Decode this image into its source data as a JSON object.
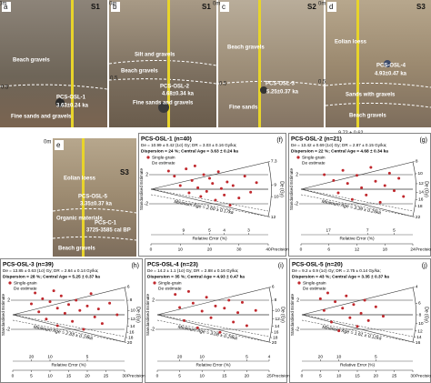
{
  "photos": [
    {
      "letter": "a",
      "site": "S1",
      "depths": [
        "0m",
        "0.5"
      ],
      "labels": [
        "Beach gravels",
        "PCS-OSL-1",
        "3.63±0.24 ka",
        "Fine sands and gravels"
      ]
    },
    {
      "letter": "b",
      "site": "S1",
      "depths": [
        "0m",
        "0.5"
      ],
      "labels": [
        "Silt and gravels",
        "Beach gravels",
        "PCS-OSL-2",
        "4.68±0.34 ka",
        "Fine sands and gravels"
      ]
    },
    {
      "letter": "c",
      "site": "S2",
      "depths": [
        "0m",
        "0.5"
      ],
      "labels": [
        "Beach gravels",
        "PCS-OSL-3",
        "5.25±0.37 ka",
        "Fine sands"
      ]
    },
    {
      "letter": "d",
      "site": "S3",
      "depths": [
        "0m",
        "0.5"
      ],
      "labels": [
        "Eolian loess",
        "PCS-OSL-4",
        "4.93±0.47 ka",
        "Sands with gravels",
        "Beach gravels"
      ],
      "note": "9.72 ± 0.62"
    },
    {
      "letter": "e",
      "site": "S3",
      "depths": [
        "0m"
      ],
      "labels": [
        "Eolian loess",
        "PCS-OSL-5",
        "3.35±0.37 ka",
        "PCS-C-1",
        "3725-3585 cal BP",
        "Organic materials",
        "Beach gravels"
      ]
    }
  ],
  "axis_labels": {
    "y": "Standardised Estimate",
    "relative_error": "Relative Error (%)",
    "precision": "Precision",
    "de": "De (Gy)"
  },
  "legend": [
    "Single-grain",
    "De estimate"
  ],
  "radial_plots": [
    {
      "letter": "(f)",
      "title": "PCS-OSL-1 (n=40)",
      "line1": "De = 10.99 ± 0.42 (1σ) Gy; DR = 3.03 ± 0.16 Gy/ka;",
      "line2": "Dispersion = 24 %; Central Age = 3.63 ± 0.24 ka",
      "min_age": "Minimum Age = 2.60 ± 0.17ka",
      "z_ticks": [
        2,
        -2
      ],
      "precision_ticks": [
        0,
        10,
        20,
        30,
        40
      ],
      "relerr_ticks": [
        9,
        5,
        4,
        3
      ],
      "de_ticks": [
        7.3,
        9,
        10,
        12
      ],
      "points": [
        [
          6,
          2.5
        ],
        [
          8,
          1.8
        ],
        [
          10,
          0.5
        ],
        [
          12,
          2.8
        ],
        [
          13,
          -0.5
        ],
        [
          14,
          1.2
        ],
        [
          15,
          3.2
        ],
        [
          16,
          0.2
        ],
        [
          17,
          -1.0
        ],
        [
          18,
          2.0
        ],
        [
          19,
          -0.3
        ],
        [
          20,
          1.5
        ],
        [
          21,
          0.8
        ],
        [
          22,
          -1.5
        ],
        [
          23,
          2.4
        ],
        [
          24,
          0.1
        ],
        [
          25,
          -0.8
        ],
        [
          26,
          1.0
        ],
        [
          27,
          -2.2
        ],
        [
          28,
          0.5
        ],
        [
          30,
          -1.2
        ],
        [
          32,
          1.8
        ],
        [
          34,
          -0.4
        ],
        [
          36,
          0.9
        ]
      ]
    },
    {
      "letter": "(g)",
      "title": "PCS-OSL-2 (n=21)",
      "line1": "De = 13.42 ± 0.69 (1σ) Gy; DR = 2.87 ± 0.15 Gy/ka;",
      "line2": "Dispersion = 22 %; Central Age = 4.68 ± 0.34 ka",
      "min_age": "Minimum Age = 3.39 ± 0.25ka",
      "z_ticks": [
        2,
        -2
      ],
      "precision_ticks": [
        0,
        6,
        12,
        18,
        24
      ],
      "relerr_ticks": [
        17,
        7,
        5
      ],
      "de_ticks": [
        8,
        10,
        12,
        14,
        16,
        18,
        22
      ],
      "points": [
        [
          5,
          2.0
        ],
        [
          7,
          1.2
        ],
        [
          8,
          -0.5
        ],
        [
          9,
          2.6
        ],
        [
          10,
          0.8
        ],
        [
          11,
          -1.4
        ],
        [
          12,
          1.9
        ],
        [
          13,
          0.2
        ],
        [
          14,
          -0.8
        ],
        [
          15,
          3.0
        ],
        [
          16,
          1.1
        ],
        [
          17,
          -1.8
        ],
        [
          18,
          0.5
        ],
        [
          19,
          2.2
        ],
        [
          20,
          -0.2
        ],
        [
          21,
          1.5
        ],
        [
          22,
          -1.0
        ]
      ]
    },
    {
      "letter": "(h)",
      "title": "PCS-OSL-3 (n=39)",
      "line1": "De = 13.85 ± 0.63 (1σ) Gy; DR = 2.64 ± 0.14 Gy/ka;",
      "line2": "Dispersion = 28 %; Central Age = 5.25 ± 0.37 ka",
      "min_age": "Minimum Age = 2.83 ± 0.19ka",
      "z_ticks": [
        2,
        -2
      ],
      "precision_ticks": [
        0,
        5,
        10,
        15,
        20,
        25,
        30
      ],
      "relerr_ticks": [
        20,
        10,
        5
      ],
      "de_ticks": [
        6,
        8,
        10,
        12,
        14,
        16,
        18,
        20
      ],
      "points": [
        [
          5,
          1.5
        ],
        [
          6,
          3.0
        ],
        [
          7,
          0.4
        ],
        [
          8,
          2.2
        ],
        [
          9,
          -0.6
        ],
        [
          10,
          1.8
        ],
        [
          11,
          3.3
        ],
        [
          12,
          0.9
        ],
        [
          12,
          -1.5
        ],
        [
          13,
          2.6
        ],
        [
          14,
          0.2
        ],
        [
          15,
          1.4
        ],
        [
          16,
          -0.9
        ],
        [
          17,
          2.0
        ],
        [
          18,
          0.6
        ],
        [
          19,
          -2.0
        ],
        [
          20,
          1.2
        ],
        [
          21,
          2.9
        ],
        [
          22,
          -0.3
        ],
        [
          23,
          0.8
        ],
        [
          24,
          -1.2
        ],
        [
          26,
          1.6
        ],
        [
          28,
          0.0
        ]
      ]
    },
    {
      "letter": "(i)",
      "title": "PCS-OSL-4 (n=23)",
      "line1": "De = 14.2 ± 1.1 (1σ) Gy; DR = 2.88 ± 0.16 Gy/ka;",
      "line2": "Dispersion = 35 %; Central Age = 4.93 ± 0.47 ka",
      "min_age": "Minimum Age = 3.08 ± 0.29ka",
      "z_ticks": [
        2,
        -2
      ],
      "precision_ticks": [
        0,
        5,
        10,
        15,
        20,
        25
      ],
      "relerr_ticks": [
        20,
        10,
        5,
        4
      ],
      "de_ticks": [
        6,
        8,
        10,
        12,
        14,
        16,
        18,
        20
      ],
      "points": [
        [
          4,
          2.8
        ],
        [
          5,
          1.0
        ],
        [
          6,
          -0.8
        ],
        [
          7,
          3.2
        ],
        [
          8,
          1.6
        ],
        [
          9,
          -1.8
        ],
        [
          10,
          0.5
        ],
        [
          11,
          2.4
        ],
        [
          12,
          -0.4
        ],
        [
          13,
          1.2
        ],
        [
          14,
          -2.4
        ],
        [
          15,
          0.9
        ],
        [
          16,
          2.0
        ],
        [
          17,
          -1.0
        ],
        [
          18,
          0.3
        ],
        [
          19,
          1.7
        ],
        [
          20,
          -1.5
        ],
        [
          22,
          0.6
        ]
      ]
    },
    {
      "letter": "(j)",
      "title": "PCS-OSL-5 (n=20)",
      "line1": "De = 9.2 ± 0.9 (1σ) Gy; DR = 2.75 ± 0.14 Gy/ka;",
      "line2": "Dispersion = 43 %; Central Age = 3.35 ± 0.37 ka",
      "min_age": "Minimum Age = 1.61 ± 0.12ka",
      "z_ticks": [
        2,
        -2
      ],
      "precision_ticks": [
        0,
        5,
        10,
        15,
        20,
        25,
        30
      ],
      "relerr_ticks": [
        20,
        10,
        5
      ],
      "de_ticks": [
        4,
        6,
        8,
        10,
        12,
        14,
        16
      ],
      "points": [
        [
          5,
          2.2
        ],
        [
          6,
          0.6
        ],
        [
          7,
          3.0
        ],
        [
          8,
          -1.0
        ],
        [
          9,
          1.8
        ],
        [
          10,
          -2.2
        ],
        [
          11,
          0.9
        ],
        [
          12,
          2.6
        ],
        [
          13,
          -0.4
        ],
        [
          14,
          1.4
        ],
        [
          15,
          -1.6
        ],
        [
          16,
          0.2
        ],
        [
          17,
          2.0
        ],
        [
          18,
          -0.8
        ],
        [
          20,
          1.1
        ],
        [
          22,
          -0.2
        ]
      ]
    }
  ]
}
